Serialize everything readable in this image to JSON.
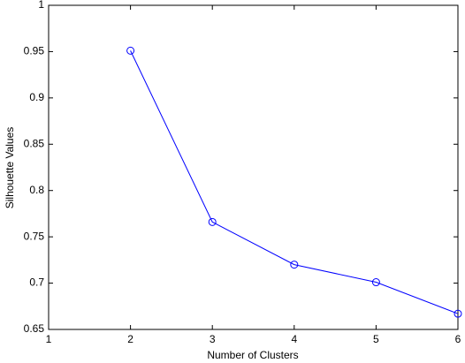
{
  "chart_data": {
    "type": "line",
    "x_label": "Number of Clusters",
    "y_label": "Silhouette Values",
    "x": [
      2,
      3,
      4,
      5,
      6
    ],
    "series": [
      {
        "name": "Silhouette",
        "color": "#0000ff",
        "values": [
          0.951,
          0.766,
          0.72,
          0.701,
          0.667
        ]
      }
    ],
    "xlim": [
      1,
      6
    ],
    "xticks": [
      1,
      2,
      3,
      4,
      5,
      6
    ],
    "ylim": [
      0.65,
      1
    ],
    "yticks": [
      0.65,
      0.7,
      0.75,
      0.8,
      0.85,
      0.9,
      0.95,
      1
    ],
    "grid": false,
    "marker": "circle"
  }
}
